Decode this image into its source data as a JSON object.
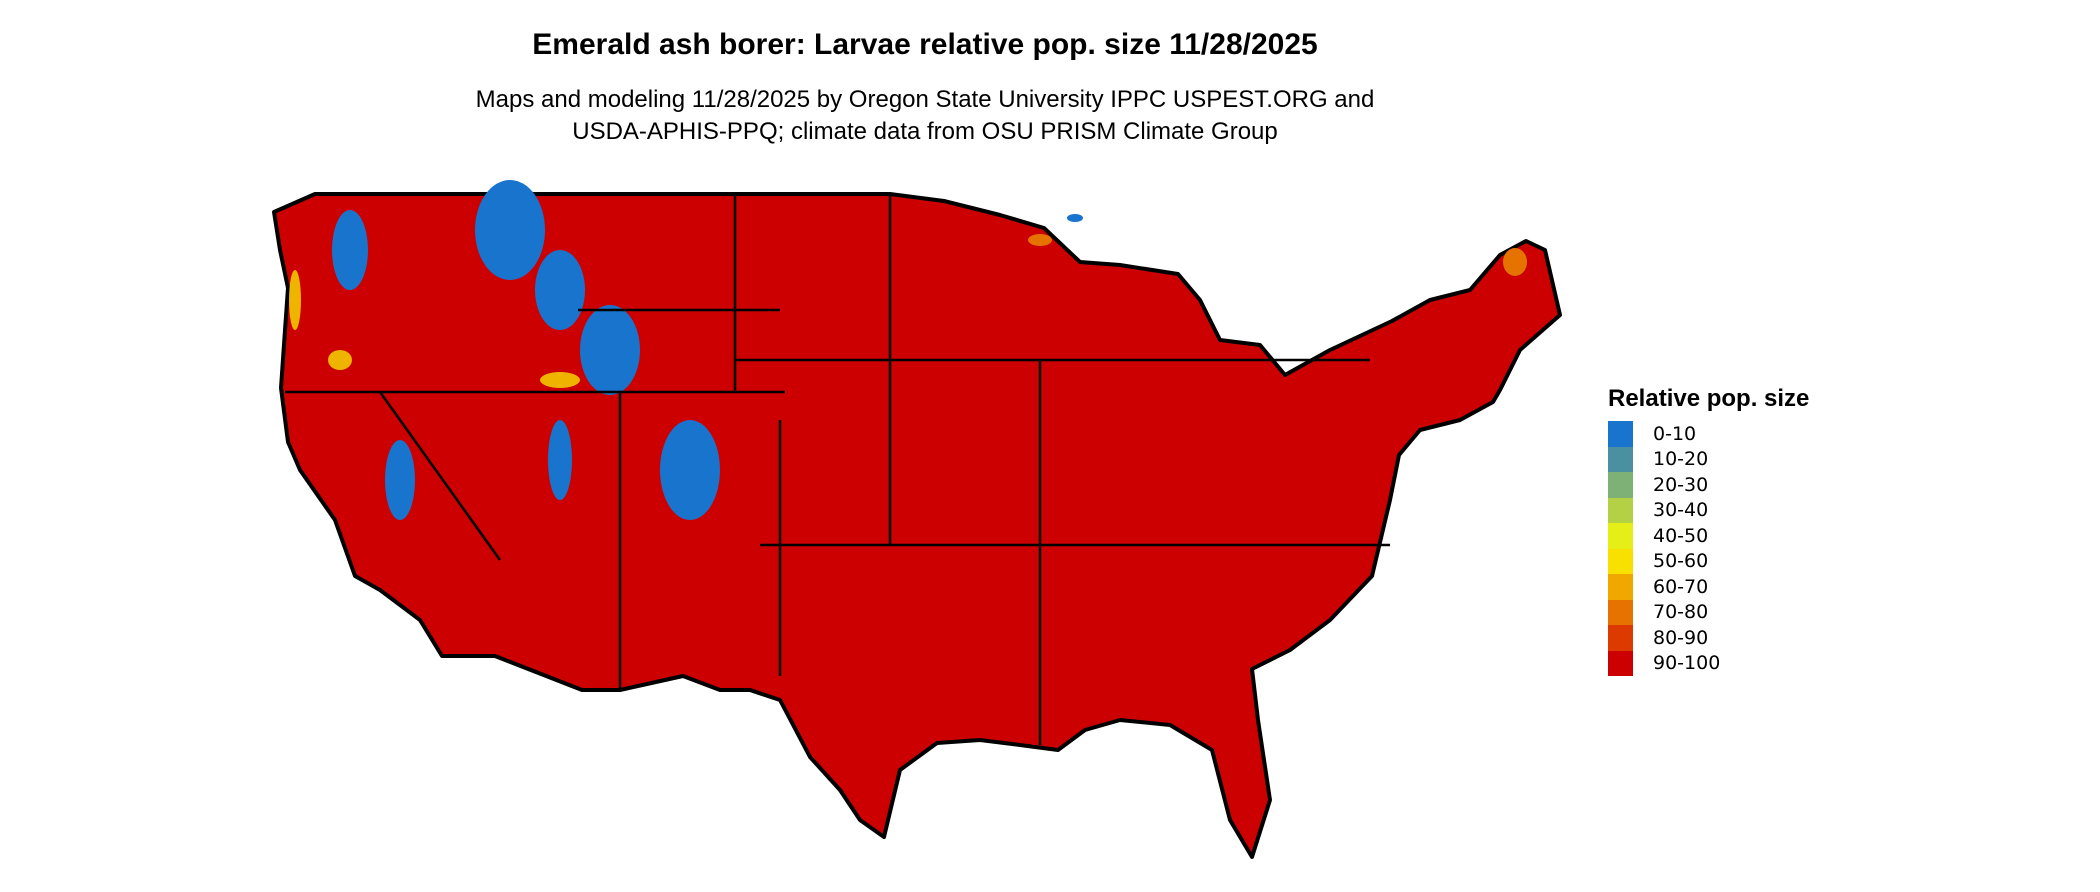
{
  "title": "Emerald ash borer: Larvae relative pop. size 11/28/2025",
  "subtitle_line1": "Maps and modeling 11/28/2025 by Oregon State University IPPC USPEST.ORG and",
  "subtitle_line2": "USDA-APHIS-PPQ; climate data from OSU PRISM Climate Group",
  "legend": {
    "title": "Relative pop. size",
    "items": [
      {
        "label": "0-10",
        "color": "#1874CD"
      },
      {
        "label": "10-20",
        "color": "#4A90A0"
      },
      {
        "label": "20-30",
        "color": "#7EB176"
      },
      {
        "label": "30-40",
        "color": "#B4D145"
      },
      {
        "label": "40-50",
        "color": "#E5EE17"
      },
      {
        "label": "50-60",
        "color": "#F8E100"
      },
      {
        "label": "60-70",
        "color": "#F0A800"
      },
      {
        "label": "70-80",
        "color": "#E67300"
      },
      {
        "label": "80-90",
        "color": "#DD3A00"
      },
      {
        "label": "90-100",
        "color": "#CC0000"
      }
    ]
  },
  "map": {
    "dominant_class": "90-100",
    "low_value_regions": "mountain west"
  }
}
